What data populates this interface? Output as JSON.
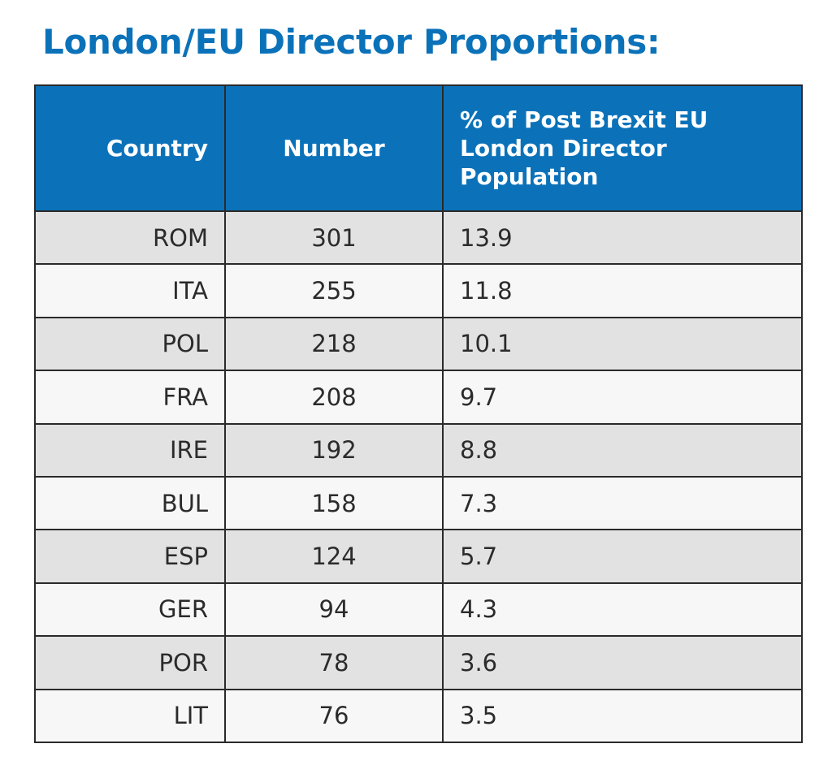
{
  "title": "London/EU Director Proportions:",
  "table": {
    "headers": {
      "country": "Country",
      "number": "Number",
      "pct_lines": [
        "% of Post Brexit  EU",
        "London Director",
        "Population"
      ]
    },
    "rows": [
      {
        "country": "ROM",
        "number": "301",
        "pct": "13.9"
      },
      {
        "country": "ITA",
        "number": "255",
        "pct": "11.8"
      },
      {
        "country": "POL",
        "number": "218",
        "pct": "10.1"
      },
      {
        "country": "FRA",
        "number": "208",
        "pct": "9.7"
      },
      {
        "country": "IRE",
        "number": "192",
        "pct": "8.8"
      },
      {
        "country": "BUL",
        "number": "158",
        "pct": "7.3"
      },
      {
        "country": "ESP",
        "number": "124",
        "pct": "5.7"
      },
      {
        "country": "GER",
        "number": "94",
        "pct": "4.3"
      },
      {
        "country": "POR",
        "number": "78",
        "pct": "3.6"
      },
      {
        "country": "LIT",
        "number": "76",
        "pct": "3.5"
      }
    ]
  },
  "colors": {
    "accent": "#0b72b9",
    "row_odd": "#e2e2e2",
    "row_even": "#f7f7f7",
    "border": "#2a2a2a"
  }
}
